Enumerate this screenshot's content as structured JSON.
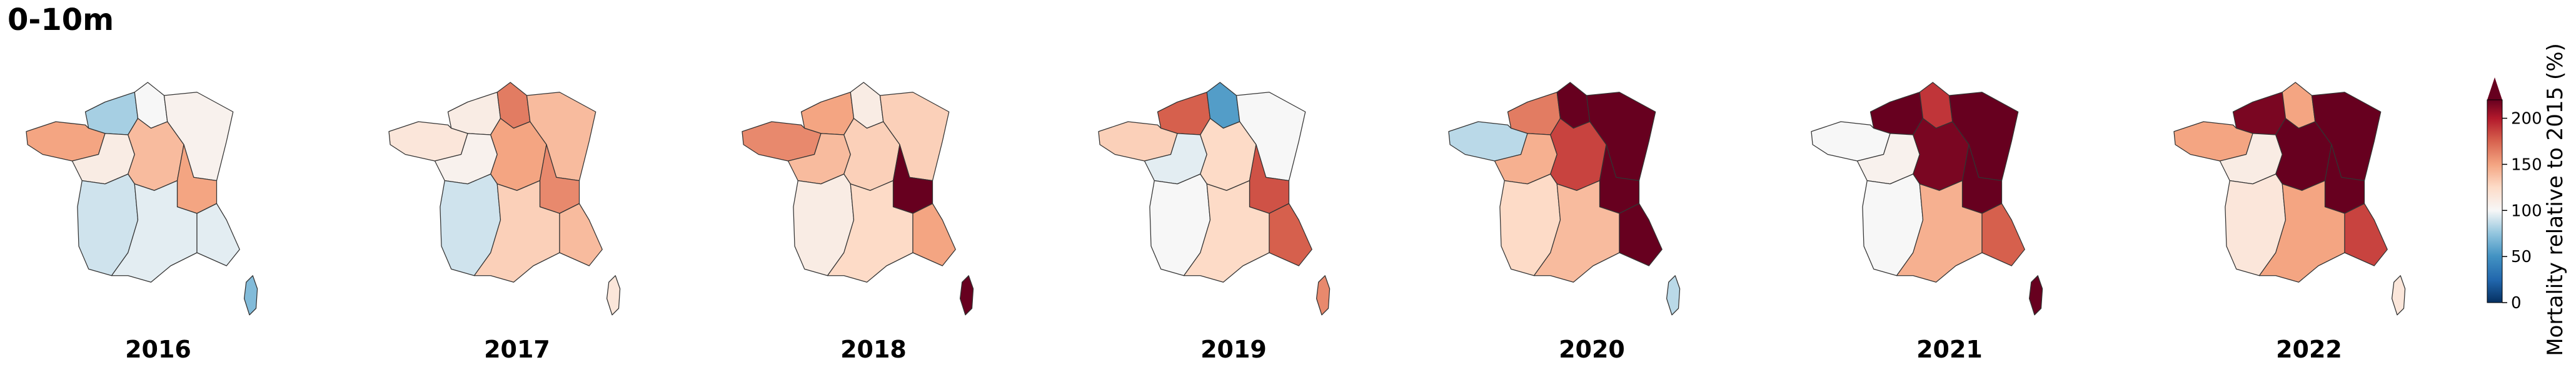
{
  "title": "0-10m",
  "colors": {
    "low": "#053061",
    "mid_low": "#4393c3",
    "neutral": "#f7f7f7",
    "mid_high": "#f4a582",
    "high": "#b2182b",
    "max": "#67001f",
    "outline": "#333333"
  },
  "maps": [
    {
      "year": "2016",
      "regions": {
        "NW": 80,
        "N": 100,
        "NE": 105,
        "BR": 150,
        "W": 110,
        "C": 140,
        "CE": 150,
        "SW": 90,
        "S": 95,
        "SE": 95,
        "CO": 70
      }
    },
    {
      "year": "2017",
      "regions": {
        "NW": 110,
        "N": 165,
        "NE": 140,
        "BR": 115,
        "W": 105,
        "C": 150,
        "CE": 160,
        "SW": 90,
        "S": 130,
        "SE": 140,
        "CO": 115
      }
    },
    {
      "year": "2018",
      "regions": {
        "NW": 150,
        "N": 110,
        "NE": 130,
        "BR": 160,
        "W": 140,
        "C": 130,
        "CE": 220,
        "SW": 110,
        "S": 125,
        "SE": 150,
        "CO": 220
      }
    },
    {
      "year": "2019",
      "regions": {
        "NW": 175,
        "N": 55,
        "NE": 100,
        "BR": 130,
        "W": 95,
        "C": 125,
        "CE": 180,
        "SW": 100,
        "S": 125,
        "SE": 175,
        "CO": 160
      }
    },
    {
      "year": "2020",
      "regions": {
        "NW": 165,
        "N": 220,
        "NE": 220,
        "BR": 85,
        "W": 145,
        "C": 185,
        "CE": 220,
        "SW": 125,
        "S": 140,
        "SE": 220,
        "CO": 85
      }
    },
    {
      "year": "2021",
      "regions": {
        "NW": 220,
        "N": 190,
        "NE": 220,
        "BR": 100,
        "W": 105,
        "C": 215,
        "CE": 220,
        "SW": 100,
        "S": 145,
        "SE": 175,
        "CO": 220
      }
    },
    {
      "year": "2022",
      "regions": {
        "NW": 215,
        "N": 150,
        "NE": 220,
        "BR": 150,
        "W": 110,
        "C": 220,
        "CE": 220,
        "SW": 115,
        "S": 150,
        "SE": 185,
        "CO": 115
      }
    }
  ],
  "colorbar": {
    "label": "Mortality relative to 2015 (%)",
    "min": 0,
    "max": 220,
    "ticks": [
      "0",
      "50",
      "100",
      "150",
      "200"
    ],
    "tick_values": [
      0,
      50,
      100,
      150,
      200
    ],
    "extend": "max"
  }
}
